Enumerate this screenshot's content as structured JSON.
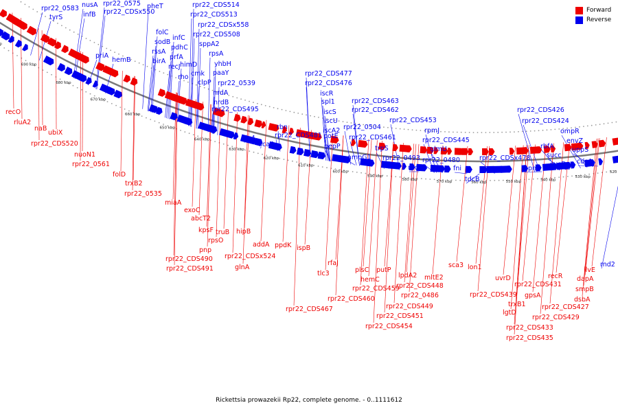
{
  "legend": {
    "forward_label": "Forward",
    "forward_color": "#ee0000",
    "reverse_label": "Reverse",
    "reverse_color": "#0000ee"
  },
  "caption": "Rickettsia prowazekii Rp22, complete genome. - 0..1111612",
  "ruler": [
    "700 kbp",
    "690 kbp",
    "680 kbp",
    "670 kbp",
    "660 kbp",
    "650 kbp",
    "640 kbp",
    "630 kbp",
    "620 kbp",
    "610 kbp",
    "600 kbp",
    "590 kbp",
    "580 kbp",
    "570 kbp",
    "560 kbp",
    "550 kbp",
    "540 kbp",
    "530 kbp",
    "520 kbp"
  ],
  "reverse_labels": [
    "rpr22_0583",
    "tyrS",
    "nusA",
    "infB",
    "rpr22_0575",
    "rpr22_CDSx550",
    "pheT",
    "rpr22_CDS514",
    "rpr22_CDS513",
    "folC",
    "infC",
    "rpr22_CDSx558",
    "sodB",
    "pdhC",
    "rpr22_CDS508",
    "rssA",
    "prfA",
    "sppA2",
    "birA",
    "recJ",
    "rpsA",
    "himD",
    "yhbH",
    "rho",
    "cmk",
    "paaY",
    "clpP",
    "rpr22_0539",
    "nrdA",
    "nrdB",
    "rpr22_CDS495",
    "priA",
    "hemB",
    "tlc4",
    "sca4",
    "rbn",
    "rpr22_CDS481",
    "rpr22_CDS477",
    "rpr22_CDS476",
    "iscR",
    "spl1",
    "iscS",
    "iscU",
    "iscA2",
    "potE",
    "pepP",
    "rpr22_CDS463",
    "rpr22_CDS462",
    "rpr22_0504",
    "rpr22_CDS461",
    "ampG1",
    "trpS",
    "rpr22_CDS453",
    "rpr22_0493",
    "rnd",
    "rpmJ",
    "rpr22_CDS445",
    "glmU",
    "rpr22_0480",
    "fni",
    "tdcB",
    "rpr22_CDSx478",
    "rpr22_CDS426",
    "rpr22_CDS424",
    "ompR",
    "ppnK",
    "rbfA",
    "envZ",
    "succ",
    "sucD",
    "uppS",
    "cdsA",
    "rnd2"
  ],
  "forward_labels": [
    "recO",
    "rluA2",
    "naB",
    "ubiX",
    "rpr22_CDS520",
    "nuoN1",
    "rpr22_0561",
    "folD",
    "trxB2",
    "rpr22_0535",
    "miaA",
    "exoC",
    "abcT2",
    "kpsF",
    "pnp",
    "rpsO",
    "truB",
    "rpr22_CDS490",
    "rpr22_CDS491",
    "hipB",
    "addA",
    "ppdK",
    "rpr22_CDSx524",
    "glnA",
    "ispB",
    "rfaJ",
    "tlc3",
    "rpr22_CDS467",
    "plsC",
    "putP",
    "hemC",
    "rpr22_CDS459",
    "rpr22_CDS460",
    "lpdA2",
    "mltE2",
    "rpr22_CDS448",
    "rpr22_0486",
    "rpr22_CDS449",
    "rpr22_CDS451",
    "rpr22_CDS454",
    "sca3",
    "lon1",
    "uvrD",
    "rpr22_CDS439",
    "trxB1",
    "lgtD",
    "rpr22_CDS431",
    "gpsA",
    "recR",
    "ilvE",
    "dapA",
    "smpB",
    "dsbA",
    "rpr22_CDS427",
    "rpr22_CDS429",
    "rpr22_CDS433",
    "rpr22_CDS435"
  ]
}
